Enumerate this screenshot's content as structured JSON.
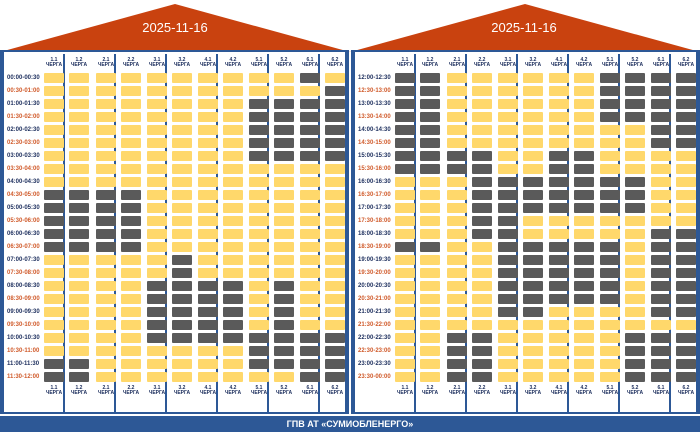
{
  "schedule_left": {
    "date": "2025-11-16",
    "slots": [
      "00:00-00:30",
      "00:30-01:00",
      "01:00-01:30",
      "01:30-02:00",
      "02:00-02:30",
      "02:30-03:00",
      "03:00-03:30",
      "03:30-04:00",
      "04:00-04:30",
      "04:30-05:00",
      "05:00-05:30",
      "05:30-06:00",
      "06:00-06:30",
      "06:30-07:00",
      "07:00-07:30",
      "07:30-08:00",
      "08:00-08:30",
      "08:30-09:00",
      "09:00-09:30",
      "09:30-10:00",
      "10:00-10:30",
      "10:30-11:00",
      "11:00-11:30",
      "11:30-12:00"
    ],
    "off": [
      [
        11,
        9,
        10,
        11,
        12,
        13,
        22,
        23
      ],
      [
        9,
        10,
        11,
        12,
        13,
        22,
        23
      ],
      [
        9,
        10,
        11,
        12,
        13
      ],
      [
        9,
        10,
        11,
        12,
        13
      ],
      [
        16,
        17,
        18,
        19,
        20
      ],
      [
        14,
        15,
        16,
        17,
        18,
        19,
        20
      ],
      [
        16,
        17,
        18,
        19,
        20
      ],
      [
        16,
        17,
        18,
        19,
        20
      ],
      [
        2,
        3,
        4,
        5,
        6,
        20,
        21,
        22
      ],
      [
        2,
        3,
        4,
        5,
        6,
        16,
        17,
        18,
        19,
        20,
        21,
        22
      ],
      [
        0,
        2,
        3,
        4,
        5,
        6,
        20,
        21,
        22,
        23
      ],
      [
        1,
        2,
        3,
        4,
        5,
        6,
        20,
        21,
        22,
        23
      ]
    ]
  },
  "schedule_right": {
    "date": "2025-11-16",
    "slots": [
      "12:00-12:30",
      "12:30-13:00",
      "13:00-13:30",
      "13:30-14:00",
      "14:00-14:30",
      "14:30-15:00",
      "15:00-15:30",
      "15:30-16:00",
      "16:00-16:30",
      "16:30-17:00",
      "17:00-17:30",
      "17:30-18:00",
      "18:00-18:30",
      "18:30-19:00",
      "19:00-19:30",
      "19:30-20:00",
      "20:00-20:30",
      "20:30-21:00",
      "21:00-21:30",
      "21:30-22:00",
      "22:00-22:30",
      "22:30-23:00",
      "23:00-23:30",
      "23:30-00:00"
    ],
    "off": [
      [
        0,
        1,
        2,
        3,
        4,
        5,
        6,
        7,
        13
      ],
      [
        0,
        1,
        2,
        3,
        4,
        5,
        6,
        7,
        13
      ],
      [
        6,
        7,
        20,
        21,
        22,
        23
      ],
      [
        6,
        7,
        8,
        9,
        10,
        11,
        12,
        20,
        21,
        22,
        23
      ],
      [
        8,
        9,
        10,
        11,
        12,
        13,
        14,
        15,
        16,
        17,
        18
      ],
      [
        8,
        9,
        10,
        13,
        14,
        15,
        16,
        17,
        18
      ],
      [
        6,
        7,
        8,
        9,
        10,
        13,
        14,
        15,
        16,
        17
      ],
      [
        6,
        7,
        8,
        9,
        10,
        13,
        14,
        15,
        16,
        17
      ],
      [
        0,
        1,
        2,
        3,
        8,
        9,
        10,
        13,
        14,
        15,
        16,
        17
      ],
      [
        0,
        1,
        2,
        3,
        8,
        9,
        10,
        20,
        21,
        22,
        23
      ],
      [
        0,
        1,
        2,
        3,
        4,
        5,
        12,
        13,
        14,
        15,
        16,
        17,
        18,
        20,
        21,
        22,
        23
      ],
      [
        0,
        1,
        2,
        3,
        4,
        5,
        12,
        13,
        14,
        15,
        16,
        17,
        18,
        20,
        21,
        22,
        23
      ]
    ]
  },
  "queues": [
    {
      "num": "1.1",
      "label": "ЧЕРГА"
    },
    {
      "num": "1.2",
      "label": "ЧЕРГА"
    },
    {
      "num": "2.1",
      "label": "ЧЕРГА"
    },
    {
      "num": "2.2",
      "label": "ЧЕРГА"
    },
    {
      "num": "3.1",
      "label": "ЧЕРГА"
    },
    {
      "num": "3.2",
      "label": "ЧЕРГА"
    },
    {
      "num": "4.1",
      "label": "ЧЕРГА"
    },
    {
      "num": "4.2",
      "label": "ЧЕРГА"
    },
    {
      "num": "5.1",
      "label": "ЧЕРГА"
    },
    {
      "num": "5.2",
      "label": "ЧЕРГА"
    },
    {
      "num": "6.1",
      "label": "ЧЕРГА"
    },
    {
      "num": "6.2",
      "label": "ЧЕРГА"
    }
  ],
  "colors": {
    "power_on": "#ffd86b",
    "power_off": "#5a5a5a",
    "frame": "#2d5896",
    "roof": "#c9420f"
  },
  "footer": {
    "text": "ГПВ АТ «СУМИОБЛЕНЕРГО»"
  }
}
